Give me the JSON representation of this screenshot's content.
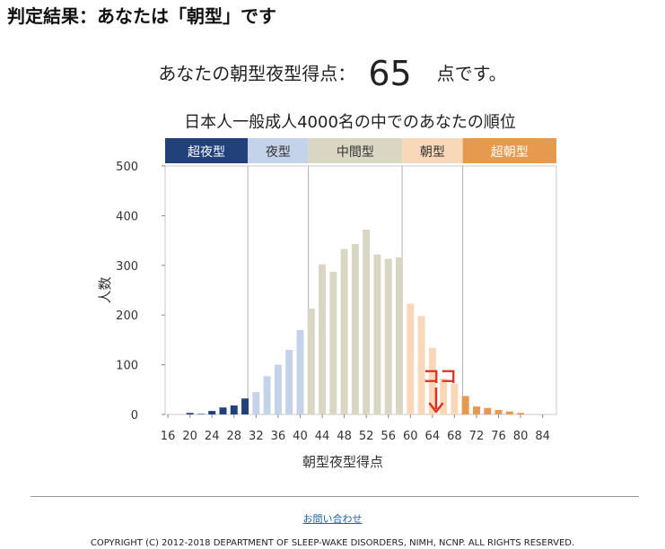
{
  "header": {
    "title": "判定結果：あなたは「朝型」です"
  },
  "score": {
    "prefix": "あなたの朝型夜型得点：",
    "value": "65",
    "suffix": "点です。"
  },
  "chart_data": {
    "type": "bar",
    "title": "日本人一般成人4000名の中でのあなたの順位",
    "xlabel": "朝型夜型得点",
    "ylabel": "人数",
    "ylim": [
      0,
      500
    ],
    "yticks": [
      0,
      100,
      200,
      300,
      400,
      500
    ],
    "xticks": [
      16,
      20,
      24,
      28,
      32,
      36,
      40,
      44,
      48,
      52,
      56,
      60,
      64,
      68,
      72,
      76,
      80,
      84
    ],
    "grid": false,
    "x": [
      16,
      17,
      18,
      19,
      20,
      21,
      22,
      23,
      24,
      25,
      26,
      27,
      28,
      29,
      30,
      31,
      32,
      33,
      34,
      35,
      36,
      37,
      38,
      39,
      40,
      41,
      42,
      43,
      44,
      45,
      46,
      47,
      48,
      49,
      50,
      51,
      52,
      53,
      54,
      55,
      56,
      57,
      58,
      59,
      60,
      61,
      62,
      63,
      64,
      65,
      66,
      67,
      68,
      69,
      70,
      71,
      72,
      73,
      74,
      75,
      76,
      77,
      78,
      79,
      80,
      81,
      82,
      83,
      84,
      85,
      86
    ],
    "values": [
      0,
      0,
      0,
      0,
      3,
      0,
      1,
      0,
      7,
      0,
      14,
      0,
      18,
      0,
      32,
      0,
      45,
      0,
      77,
      0,
      100,
      0,
      130,
      0,
      170,
      0,
      213,
      0,
      302,
      0,
      287,
      0,
      333,
      0,
      343,
      0,
      372,
      0,
      322,
      0,
      313,
      0,
      316,
      0,
      223,
      0,
      198,
      0,
      134,
      0,
      72,
      0,
      62,
      0,
      37,
      0,
      16,
      0,
      13,
      0,
      9,
      0,
      6,
      0,
      3,
      0,
      0,
      0,
      0,
      0,
      0
    ],
    "categories_bands": [
      {
        "label": "超夜型",
        "from": 16,
        "to": 30,
        "color": "#22407a"
      },
      {
        "label": "夜型",
        "from": 31,
        "to": 41,
        "color": "#c4d3ea"
      },
      {
        "label": "中間型",
        "from": 42,
        "to": 58,
        "color": "#d9d7c3"
      },
      {
        "label": "朝型",
        "from": 59,
        "to": 69,
        "color": "#f8d8b8"
      },
      {
        "label": "超朝型",
        "from": 70,
        "to": 86,
        "color": "#e69a50"
      }
    ],
    "annotation": {
      "text": "ココ",
      "x": 65,
      "color": "#e03020"
    }
  },
  "footer": {
    "contact": "お問い合わせ",
    "copyright": "COPYRIGHT (C) 2012-2018 DEPARTMENT OF SLEEP-WAKE DISORDERS, NIMH, NCNP. ALL RIGHTS RESERVED."
  }
}
